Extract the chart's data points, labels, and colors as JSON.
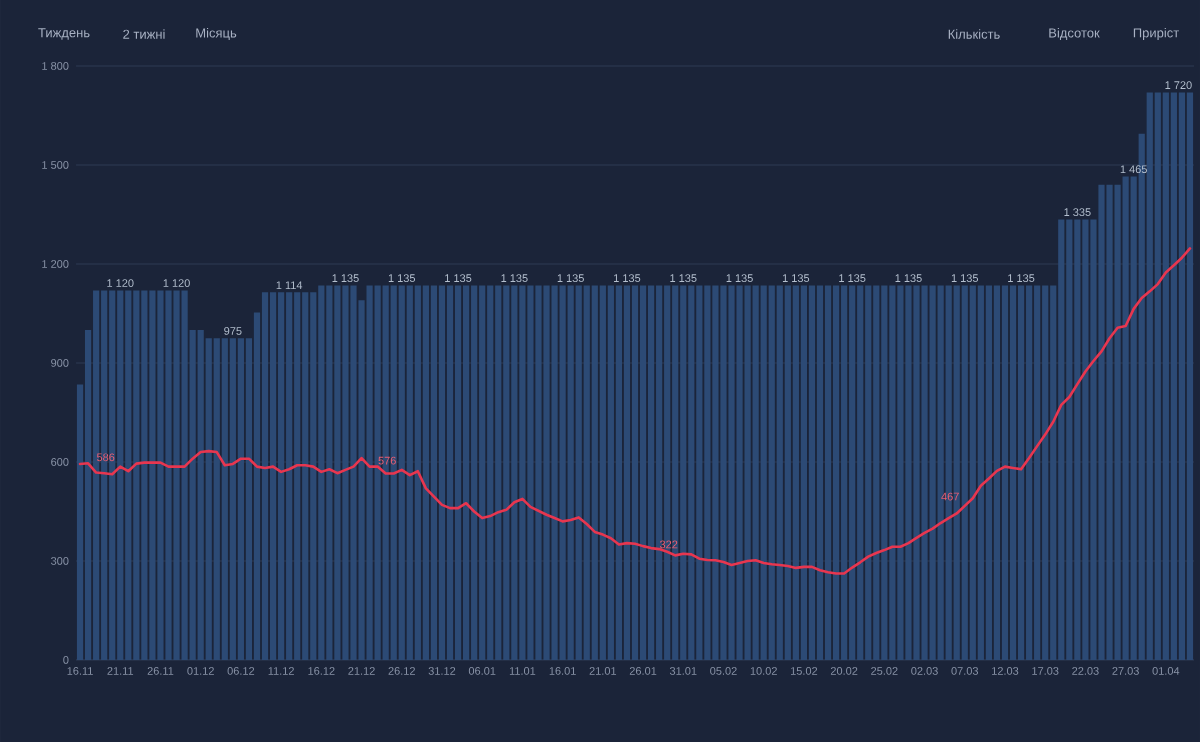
{
  "chart_data": {
    "type": "bar",
    "annotations": [
      "Тиждень",
      "2 тижні",
      "Місяць",
      "Кількість",
      "Відсоток",
      "Приріст"
    ],
    "categories": [
      "16.11",
      null,
      null,
      null,
      null,
      "21.11",
      null,
      null,
      null,
      null,
      "26.11",
      null,
      null,
      null,
      null,
      "01.12",
      null,
      null,
      null,
      null,
      "06.12",
      null,
      null,
      null,
      null,
      "11.12",
      null,
      null,
      null,
      null,
      "16.12",
      null,
      null,
      null,
      null,
      "21.12",
      null,
      null,
      null,
      null,
      "26.12",
      null,
      null,
      null,
      null,
      "31.12",
      null,
      null,
      null,
      null,
      "06.01",
      null,
      null,
      null,
      null,
      "11.01",
      null,
      null,
      null,
      null,
      "16.01",
      null,
      null,
      null,
      null,
      "21.01",
      null,
      null,
      null,
      null,
      "26.01",
      null,
      null,
      null,
      null,
      "31.01",
      null,
      null,
      null,
      null,
      "05.02",
      null,
      null,
      null,
      null,
      "10.02",
      null,
      null,
      null,
      null,
      "15.02",
      null,
      null,
      null,
      null,
      "20.02",
      null,
      null,
      null,
      null,
      "25.02",
      null,
      null,
      null,
      null,
      "02.03",
      null,
      null,
      null,
      null,
      "07.03",
      null,
      null,
      null,
      null,
      "12.03",
      null,
      null,
      null,
      null,
      "17.03",
      null,
      null,
      null,
      null,
      "22.03",
      null,
      null,
      null,
      null,
      "27.03",
      null,
      null,
      null,
      null,
      "01.04",
      null,
      null,
      null
    ],
    "ylim": [
      0,
      1800
    ],
    "yticks": [
      0,
      300,
      600,
      900,
      {
        "value": 1200,
        "label": "1 200"
      },
      {
        "value": 1500,
        "label": "1 500"
      },
      {
        "value": 1800,
        "label": "1 800"
      }
    ],
    "grid": "y",
    "series": [
      {
        "color": "#2c4a75",
        "values": [
          835,
          1000,
          1120,
          1120,
          1120,
          1120,
          1120,
          1120,
          1120,
          1120,
          1120,
          1120,
          1120,
          1120,
          1000,
          1000,
          975,
          975,
          975,
          975,
          975,
          975,
          1053,
          1114,
          1114,
          1114,
          1114,
          1114,
          1114,
          1114,
          1135,
          1135,
          1135,
          1135,
          1135,
          1090,
          1135,
          1135,
          1135,
          1135,
          1135,
          1135,
          1135,
          1135,
          1135,
          1135,
          1135,
          1135,
          1135,
          1135,
          1135,
          1135,
          1135,
          1135,
          1135,
          1135,
          1135,
          1135,
          1135,
          1135,
          1135,
          1135,
          1135,
          1135,
          1135,
          1135,
          1135,
          1135,
          1135,
          1135,
          1135,
          1135,
          1135,
          1135,
          1135,
          1135,
          1135,
          1135,
          1135,
          1135,
          1135,
          1135,
          1135,
          1135,
          1135,
          1135,
          1135,
          1135,
          1135,
          1135,
          1135,
          1135,
          1135,
          1135,
          1135,
          1135,
          1135,
          1135,
          1135,
          1135,
          1135,
          1135,
          1135,
          1135,
          1135,
          1135,
          1135,
          1135,
          1135,
          1135,
          1135,
          1135,
          1135,
          1135,
          1135,
          1135,
          1135,
          1135,
          1135,
          1135,
          1135,
          1135,
          1335,
          1335,
          1335,
          1335,
          1335,
          1440,
          1440,
          1440,
          1465,
          1465,
          1595,
          1720,
          1720,
          1720,
          1720,
          1720,
          1720
        ],
        "value_labels": [
          null,
          null,
          null,
          null,
          null,
          "1 120",
          null,
          null,
          null,
          null,
          null,
          null,
          "1 120",
          null,
          null,
          null,
          null,
          null,
          null,
          "975",
          null,
          null,
          null,
          null,
          null,
          null,
          "1 114",
          null,
          null,
          null,
          null,
          null,
          null,
          "1 135",
          null,
          null,
          null,
          null,
          null,
          null,
          "1 135",
          null,
          null,
          null,
          null,
          null,
          null,
          "1 135",
          null,
          null,
          null,
          null,
          null,
          null,
          "1 135",
          null,
          null,
          null,
          null,
          null,
          null,
          "1 135",
          null,
          null,
          null,
          null,
          null,
          null,
          "1 135",
          null,
          null,
          null,
          null,
          null,
          null,
          "1 135",
          null,
          null,
          null,
          null,
          null,
          null,
          "1 135",
          null,
          null,
          null,
          null,
          null,
          null,
          "1 135",
          null,
          null,
          null,
          null,
          null,
          null,
          "1 135",
          null,
          null,
          null,
          null,
          null,
          null,
          "1 135",
          null,
          null,
          null,
          null,
          null,
          null,
          "1 135",
          null,
          null,
          null,
          null,
          null,
          null,
          "1 135",
          null,
          null,
          null,
          null,
          null,
          null,
          "1 335",
          null,
          null,
          null,
          null,
          null,
          null,
          "1 465",
          null,
          null,
          null,
          null,
          null,
          null,
          "1 720"
        ]
      },
      {
        "type": "line",
        "color": "#e8364f",
        "values": [
          594,
          596,
          568,
          566,
          563,
          586,
          572,
          595,
          598,
          598,
          598,
          586,
          586,
          586,
          610,
          630,
          633,
          630,
          590,
          594,
          610,
          610,
          586,
          582,
          586,
          570,
          578,
          590,
          590,
          586,
          570,
          578,
          566,
          576,
          586,
          612,
          586,
          586,
          565,
          565,
          576,
          560,
          572,
          520,
          495,
          470,
          460,
          460,
          475,
          450,
          430,
          436,
          448,
          455,
          478,
          488,
          464,
          452,
          440,
          430,
          420,
          424,
          432,
          412,
          388,
          380,
          369,
          350,
          354,
          352,
          345,
          339,
          336,
          328,
          317,
          322,
          320,
          307,
          303,
          302,
          297,
          288,
          294,
          300,
          302,
          294,
          290,
          288,
          285,
          279,
          282,
          282,
          272,
          266,
          262,
          262,
          280,
          296,
          313,
          324,
          333,
          343,
          343,
          354,
          370,
          385,
          398,
          415,
          430,
          444,
          467,
          490,
          528,
          550,
          573,
          586,
          582,
          578,
          612,
          648,
          683,
          722,
          773,
          797,
          836,
          874,
          906,
          935,
          975,
          1007,
          1012,
          1064,
          1097,
          1117,
          1139,
          1174,
          1196,
          1219,
          1247
        ],
        "value_labels": [
          null,
          null,
          null,
          null,
          null,
          "586",
          null,
          null,
          null,
          null,
          null,
          null,
          null,
          null,
          null,
          null,
          null,
          null,
          null,
          null,
          null,
          null,
          null,
          null,
          null,
          null,
          null,
          null,
          null,
          null,
          null,
          null,
          null,
          null,
          null,
          null,
          null,
          null,
          null,
          null,
          "576",
          null,
          null,
          null,
          null,
          null,
          null,
          null,
          null,
          null,
          null,
          null,
          null,
          null,
          null,
          null,
          null,
          null,
          null,
          null,
          null,
          null,
          null,
          null,
          null,
          null,
          null,
          null,
          null,
          null,
          null,
          null,
          null,
          null,
          null,
          "322",
          null,
          null,
          null,
          null,
          null,
          null,
          null,
          null,
          null,
          null,
          null,
          null,
          null,
          null,
          null,
          null,
          null,
          null,
          null,
          null,
          null,
          null,
          null,
          null,
          null,
          null,
          null,
          null,
          null,
          null,
          null,
          null,
          null,
          null,
          "467",
          null,
          null,
          null,
          null,
          null,
          null,
          null,
          null,
          null,
          null,
          null,
          null,
          null,
          null,
          null,
          null,
          null,
          null,
          null,
          null,
          null,
          null,
          null,
          null,
          null,
          null,
          null,
          null
        ]
      }
    ]
  }
}
